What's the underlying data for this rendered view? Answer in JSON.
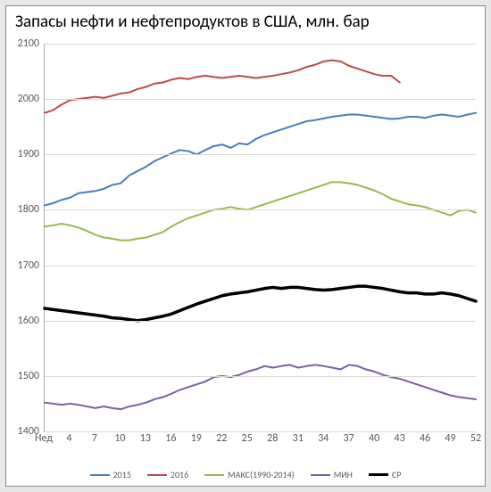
{
  "chart": {
    "type": "line",
    "title": "Запасы нефти и нефтепродуктов в США, млн. бар",
    "title_fontsize": 19,
    "background_color": "#ffffff",
    "grid_color": "#d9d9d9",
    "axis_color": "#aaaaaa",
    "tick_fontcolor": "#595959",
    "tick_fontsize": 12,
    "ylim": [
      1400,
      2100
    ],
    "ytick_step": 100,
    "yticks": [
      1400,
      1500,
      1600,
      1700,
      1800,
      1900,
      2000,
      2100
    ],
    "xlabel_first": "Нед",
    "xticks": [
      4,
      7,
      10,
      13,
      16,
      19,
      22,
      25,
      28,
      31,
      34,
      37,
      40,
      43,
      46,
      49,
      52
    ],
    "x_count": 52,
    "series": [
      {
        "name": "2015",
        "color": "#4a7ebb",
        "width": 2,
        "values": [
          1808,
          1812,
          1818,
          1822,
          1830,
          1832,
          1834,
          1838,
          1845,
          1848,
          1862,
          1870,
          1878,
          1888,
          1895,
          1902,
          1908,
          1906,
          1900,
          1908,
          1915,
          1918,
          1912,
          1920,
          1918,
          1928,
          1935,
          1940,
          1945,
          1950,
          1955,
          1960,
          1962,
          1965,
          1968,
          1970,
          1972,
          1972,
          1970,
          1968,
          1966,
          1964,
          1965,
          1968,
          1968,
          1966,
          1970,
          1972,
          1970,
          1968,
          1972,
          1975
        ]
      },
      {
        "name": "2016",
        "color": "#be4b48",
        "width": 2,
        "values": [
          1975,
          1980,
          1990,
          1998,
          2000,
          2002,
          2004,
          2002,
          2006,
          2010,
          2012,
          2018,
          2022,
          2028,
          2030,
          2035,
          2038,
          2036,
          2040,
          2042,
          2040,
          2038,
          2040,
          2042,
          2040,
          2038,
          2040,
          2042,
          2045,
          2048,
          2052,
          2058,
          2062,
          2068,
          2070,
          2068,
          2060,
          2055,
          2050,
          2045,
          2042,
          2042,
          2030
        ]
      },
      {
        "name": "МАКС(1990-2014)",
        "color": "#98b954",
        "width": 2,
        "values": [
          1770,
          1772,
          1775,
          1772,
          1768,
          1762,
          1755,
          1750,
          1748,
          1745,
          1745,
          1748,
          1750,
          1755,
          1760,
          1770,
          1778,
          1785,
          1790,
          1795,
          1800,
          1802,
          1805,
          1802,
          1800,
          1805,
          1810,
          1815,
          1820,
          1825,
          1830,
          1835,
          1840,
          1845,
          1850,
          1850,
          1848,
          1845,
          1840,
          1835,
          1828,
          1820,
          1815,
          1810,
          1808,
          1805,
          1800,
          1795,
          1790,
          1798,
          1800,
          1795
        ]
      },
      {
        "name": "МИН",
        "color": "#7d60a0",
        "width": 2,
        "values": [
          1452,
          1450,
          1448,
          1450,
          1448,
          1445,
          1442,
          1445,
          1442,
          1440,
          1445,
          1448,
          1452,
          1458,
          1462,
          1468,
          1475,
          1480,
          1485,
          1490,
          1498,
          1500,
          1498,
          1502,
          1508,
          1512,
          1518,
          1515,
          1518,
          1520,
          1515,
          1518,
          1520,
          1518,
          1515,
          1512,
          1520,
          1518,
          1512,
          1508,
          1502,
          1498,
          1495,
          1490,
          1485,
          1480,
          1475,
          1470,
          1465,
          1462,
          1460,
          1458
        ]
      },
      {
        "name": "СР",
        "color": "#000000",
        "width": 3.5,
        "values": [
          1622,
          1620,
          1618,
          1616,
          1614,
          1612,
          1610,
          1608,
          1605,
          1604,
          1602,
          1600,
          1602,
          1605,
          1608,
          1612,
          1618,
          1624,
          1630,
          1635,
          1640,
          1645,
          1648,
          1650,
          1652,
          1655,
          1658,
          1660,
          1658,
          1660,
          1660,
          1658,
          1656,
          1655,
          1656,
          1658,
          1660,
          1662,
          1662,
          1660,
          1658,
          1655,
          1652,
          1650,
          1650,
          1648,
          1648,
          1650,
          1648,
          1645,
          1640,
          1635
        ]
      }
    ],
    "legend_items": [
      {
        "label": "2015",
        "color": "#4a7ebb",
        "width": 2
      },
      {
        "label": "2016",
        "color": "#be4b48",
        "width": 2
      },
      {
        "label": "МАКС(1990-2014)",
        "color": "#98b954",
        "width": 2
      },
      {
        "label": "МИН",
        "color": "#7d60a0",
        "width": 2
      },
      {
        "label": "СР",
        "color": "#000000",
        "width": 3.5
      }
    ]
  }
}
